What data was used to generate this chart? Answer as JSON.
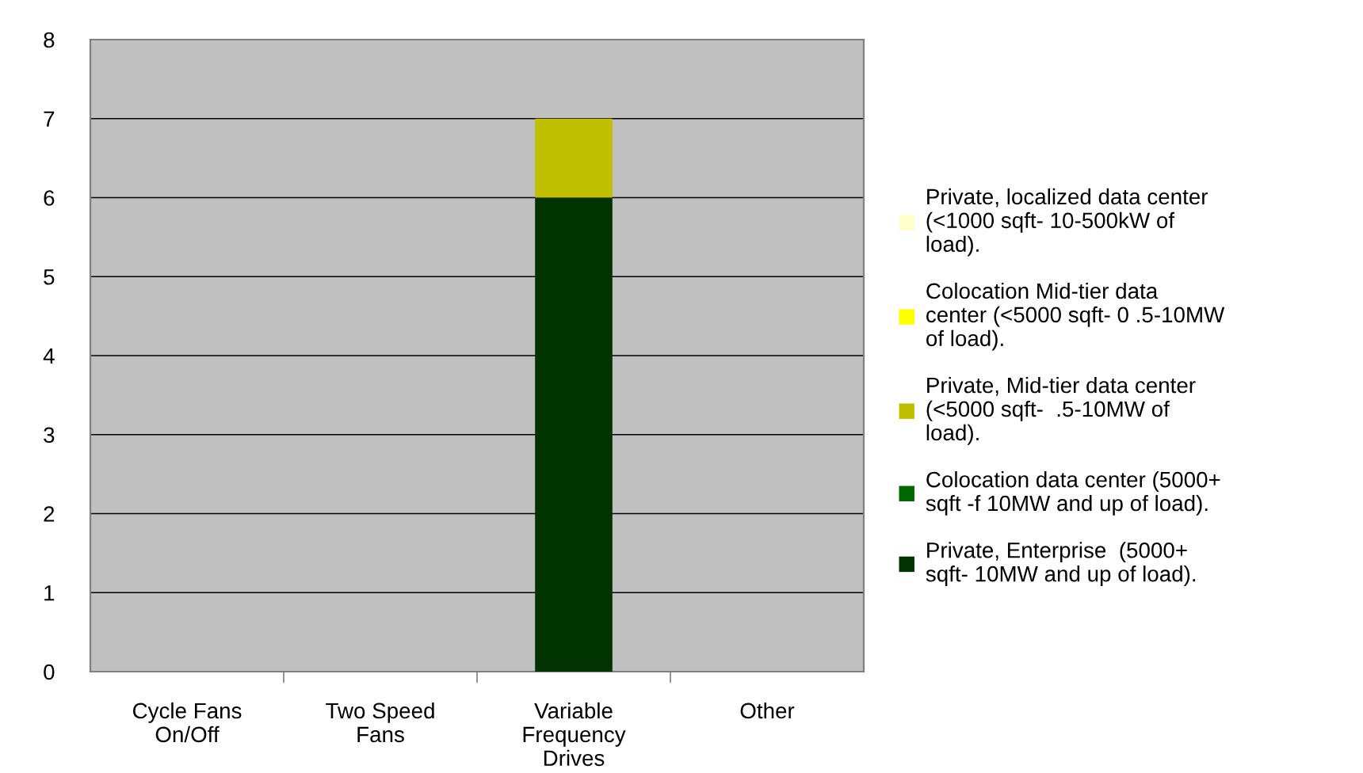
{
  "chart_data": {
    "type": "bar",
    "stacked": true,
    "categories": [
      "Cycle Fans On/Off",
      "Two Speed Fans",
      "Variable Frequency Drives",
      "Other"
    ],
    "series": [
      {
        "name": "Private, Enterprise  (5000+ sqft- 10MW and up of load).",
        "color": "#003300",
        "values": [
          0,
          0,
          6,
          0
        ]
      },
      {
        "name": "Colocation data center (5000+ sqft -f 10MW and up of load).",
        "color": "#006600",
        "values": [
          0,
          0,
          0,
          0
        ]
      },
      {
        "name": "Private, Mid-tier data center (<5000 sqft-  .5-10MW of load).",
        "color": "#c0c000",
        "values": [
          0,
          0,
          1,
          0
        ]
      },
      {
        "name": "Colocation Mid-tier data center (<5000 sqft- 0 .5-10MW of load).",
        "color": "#ffff00",
        "values": [
          0,
          0,
          0,
          0
        ]
      },
      {
        "name": "Private, localized data center (<1000 sqft- 10-500kW of load).",
        "color": "#ffffcc",
        "values": [
          0,
          0,
          0,
          0
        ]
      }
    ],
    "ylim": [
      0,
      8
    ],
    "yticks": [
      0,
      1,
      2,
      3,
      4,
      5,
      6,
      7,
      8
    ],
    "grid": "y",
    "legend": "right"
  }
}
